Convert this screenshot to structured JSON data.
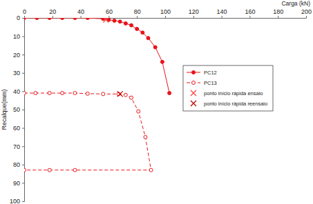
{
  "chart_data": {
    "type": "line",
    "x_label": "Carga (kN)",
    "y_label": "Recalque(mm)",
    "xlim": [
      0,
      200
    ],
    "xticks": [
      0,
      20,
      40,
      60,
      80,
      100,
      120,
      140,
      160,
      180,
      200
    ],
    "ylim": [
      0,
      100
    ],
    "yticks": [
      0,
      10,
      20,
      30,
      40,
      50,
      60,
      70,
      80,
      90,
      100
    ],
    "grid": false,
    "legend": "right",
    "series": [
      {
        "name": "PC12",
        "type": "line",
        "color": "#e8141b",
        "marker": "circle",
        "line_style": "solid",
        "x": [
          0,
          9,
          18,
          27,
          36,
          45,
          56,
          60,
          64,
          68,
          72,
          76,
          80,
          84,
          88,
          93,
          98,
          103
        ],
        "values": [
          0,
          0,
          0,
          0,
          0,
          0,
          0.5,
          1,
          1.5,
          2,
          3,
          4,
          6,
          8,
          11,
          16,
          24,
          41
        ]
      },
      {
        "name": "PC13",
        "type": "line",
        "color": "#e8141b",
        "marker": "circle-open",
        "line_style": "dashed",
        "x": [
          0,
          8,
          18,
          27,
          36,
          45,
          56,
          67,
          72,
          76,
          81,
          86,
          90,
          36,
          18,
          0
        ],
        "values": [
          41,
          41,
          41,
          41,
          41,
          41.3,
          41.5,
          41.5,
          42,
          43.5,
          51,
          65,
          83,
          83,
          83,
          83
        ]
      },
      {
        "name": "ponto início rápida ensaio",
        "type": "scatter",
        "color": "#ff4040",
        "marker": "x",
        "x": [
          58
        ],
        "values": [
          1
        ]
      },
      {
        "name": "ponto início rápida reensaio",
        "type": "scatter",
        "color": "#c00000",
        "marker": "x",
        "x": [
          68
        ],
        "values": [
          41.5
        ]
      }
    ]
  }
}
